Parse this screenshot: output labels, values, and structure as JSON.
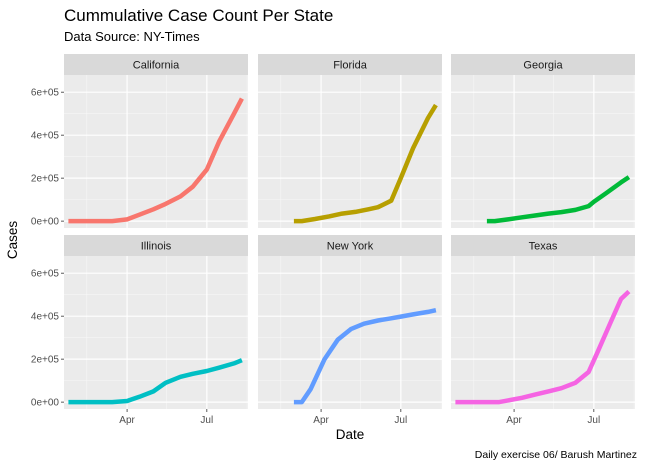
{
  "chart_data": {
    "type": "line",
    "title": "Cummulative Case Count Per State",
    "subtitle": "Data Source: NY-Times",
    "xlabel": "Date",
    "ylabel": "Cases",
    "caption": "Daily exercise 06/ Barush Martinez",
    "x": [
      "2020-02-20",
      "2020-03-01",
      "2020-03-15",
      "2020-04-01",
      "2020-04-15",
      "2020-05-01",
      "2020-05-15",
      "2020-06-01",
      "2020-06-15",
      "2020-07-01",
      "2020-07-15",
      "2020-08-01",
      "2020-08-10"
    ],
    "x_ticks": [
      {
        "date": "2020-04-01",
        "label": "Apr"
      },
      {
        "date": "2020-07-01",
        "label": "Jul"
      }
    ],
    "y_ticks": [
      {
        "value": 0,
        "label": "0e+00"
      },
      {
        "value": 200000,
        "label": "2e+05"
      },
      {
        "value": 400000,
        "label": "4e+05"
      },
      {
        "value": 600000,
        "label": "6e+05"
      }
    ],
    "ylim": [
      -32000,
      680000
    ],
    "grid": true,
    "facets": [
      {
        "name": "California",
        "color": "#F8766D",
        "start": "2020-01-25",
        "values": [
          0,
          0,
          0,
          8000,
          30000,
          55000,
          80000,
          115000,
          160000,
          240000,
          370000,
          500000,
          570000
        ],
        "x": [
          "2020-01-25",
          "2020-02-20",
          "2020-03-15",
          "2020-04-01",
          "2020-04-15",
          "2020-05-01",
          "2020-05-15",
          "2020-06-01",
          "2020-06-15",
          "2020-07-01",
          "2020-07-15",
          "2020-08-01",
          "2020-08-10"
        ]
      },
      {
        "name": "Florida",
        "color": "#B79F00",
        "values": [
          0,
          0,
          10000,
          22000,
          35000,
          43000,
          55000,
          65000,
          95000,
          200000,
          340000,
          480000,
          540000
        ],
        "x": [
          "2020-03-01",
          "2020-03-10",
          "2020-03-25",
          "2020-04-10",
          "2020-04-25",
          "2020-05-10",
          "2020-05-25",
          "2020-06-05",
          "2020-06-20",
          "2020-07-01",
          "2020-07-15",
          "2020-08-01",
          "2020-08-10"
        ]
      },
      {
        "name": "Georgia",
        "color": "#00BA38",
        "values": [
          0,
          0,
          8000,
          18000,
          26000,
          35000,
          42000,
          52000,
          70000,
          90000,
          130000,
          180000,
          205000
        ],
        "x": [
          "2020-03-01",
          "2020-03-10",
          "2020-03-25",
          "2020-04-10",
          "2020-04-25",
          "2020-05-10",
          "2020-05-25",
          "2020-06-10",
          "2020-06-25",
          "2020-07-01",
          "2020-07-15",
          "2020-08-01",
          "2020-08-10"
        ]
      },
      {
        "name": "Illinois",
        "color": "#00BFC4",
        "values": [
          0,
          0,
          0,
          5000,
          25000,
          50000,
          90000,
          118000,
          132000,
          145000,
          160000,
          180000,
          195000
        ],
        "x": [
          "2020-01-25",
          "2020-02-20",
          "2020-03-15",
          "2020-04-01",
          "2020-04-15",
          "2020-05-01",
          "2020-05-15",
          "2020-06-01",
          "2020-06-15",
          "2020-07-01",
          "2020-07-15",
          "2020-08-01",
          "2020-08-10"
        ]
      },
      {
        "name": "New York",
        "color": "#619CFF",
        "values": [
          0,
          0,
          60000,
          200000,
          290000,
          340000,
          365000,
          380000,
          390000,
          398000,
          408000,
          420000,
          428000
        ],
        "x": [
          "2020-03-01",
          "2020-03-10",
          "2020-03-20",
          "2020-04-05",
          "2020-04-20",
          "2020-05-05",
          "2020-05-20",
          "2020-06-05",
          "2020-06-20",
          "2020-07-01",
          "2020-07-15",
          "2020-08-01",
          "2020-08-10"
        ]
      },
      {
        "name": "Texas",
        "color": "#F564E3",
        "values": [
          0,
          0,
          0,
          20000,
          35000,
          50000,
          65000,
          90000,
          140000,
          230000,
          370000,
          480000,
          515000
        ],
        "x": [
          "2020-01-25",
          "2020-02-20",
          "2020-03-15",
          "2020-04-10",
          "2020-04-25",
          "2020-05-10",
          "2020-05-25",
          "2020-06-10",
          "2020-06-25",
          "2020-07-05",
          "2020-07-20",
          "2020-08-01",
          "2020-08-10"
        ]
      }
    ]
  }
}
